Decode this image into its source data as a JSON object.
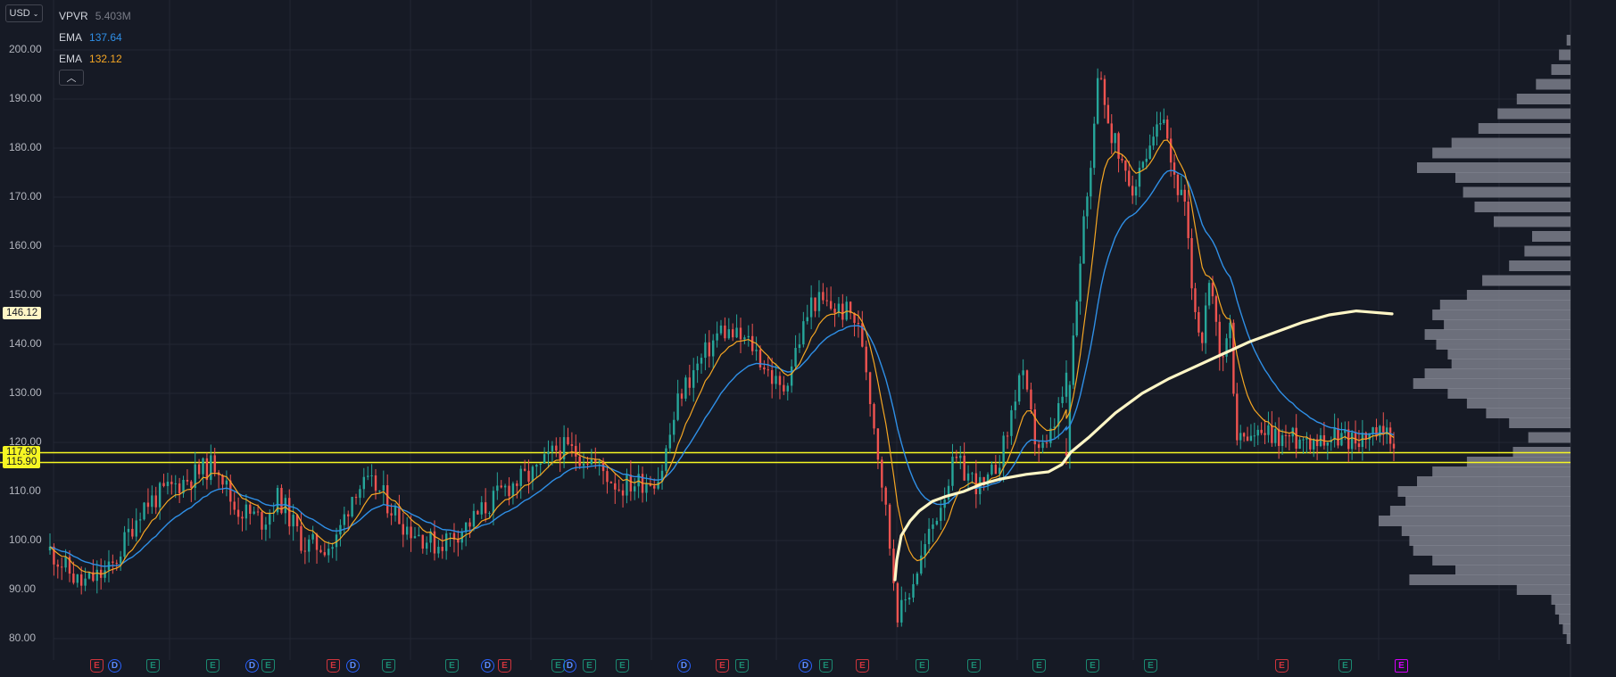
{
  "header": {
    "currency": "USD",
    "collapse_icon": "chevron-up-icon",
    "legend": [
      {
        "name": "VPVR",
        "value": "5.403M",
        "color": "#787b86"
      },
      {
        "name": "EMA",
        "value": "137.64",
        "color": "#2f8fe6"
      },
      {
        "name": "EMA",
        "value": "132.12",
        "color": "#f5a623"
      }
    ]
  },
  "axis": {
    "ticks": [
      "200.00",
      "190.00",
      "180.00",
      "170.00",
      "160.00",
      "150.00",
      "140.00",
      "130.00",
      "120.00",
      "110.00",
      "100.00",
      "90.00",
      "80.00"
    ]
  },
  "price_tags": [
    {
      "label": "146.12",
      "value": 146.12,
      "bg": "#fff6c6"
    },
    {
      "label": "117.90",
      "value": 117.9,
      "bg": "#f6f623"
    },
    {
      "label": "115.90",
      "value": 115.9,
      "bg": "#f6f623"
    }
  ],
  "chart_data": {
    "type": "line",
    "ylim": [
      78,
      203
    ],
    "grid": true,
    "horizontal_lines": [
      117.9,
      115.9
    ],
    "colors": {
      "up": "#26a69a",
      "down": "#ef5350",
      "ema_fast": "#f5a623",
      "ema_slow": "#2f8fe6",
      "vwap": "#fff6c6",
      "hline": "#f6f623",
      "vpvr": "#7b7f8b"
    },
    "price_path": [
      [
        0,
        98
      ],
      [
        0.03,
        91
      ],
      [
        0.06,
        94
      ],
      [
        0.09,
        107
      ],
      [
        0.13,
        112
      ],
      [
        0.165,
        116
      ],
      [
        0.18,
        107
      ],
      [
        0.21,
        104
      ],
      [
        0.225,
        109
      ],
      [
        0.25,
        99
      ],
      [
        0.28,
        99
      ],
      [
        0.3,
        111
      ],
      [
        0.32,
        111
      ],
      [
        0.35,
        103
      ],
      [
        0.38,
        99
      ],
      [
        0.41,
        103
      ],
      [
        0.45,
        111
      ],
      [
        0.48,
        114
      ],
      [
        0.5,
        119
      ],
      [
        0.53,
        117
      ],
      [
        0.56,
        111
      ],
      [
        0.6,
        113
      ],
      [
        0.62,
        130
      ],
      [
        0.66,
        143
      ],
      [
        0.69,
        140
      ],
      [
        0.72,
        130
      ],
      [
        0.75,
        149
      ],
      [
        0.79,
        146
      ],
      [
        0.8,
        140
      ],
      [
        0.82,
        110
      ],
      [
        0.835,
        84
      ],
      [
        0.86,
        98
      ],
      [
        0.89,
        116
      ],
      [
        0.92,
        110
      ],
      [
        0.94,
        120
      ],
      [
        0.955,
        135
      ],
      [
        0.97,
        120
      ],
      [
        0.98,
        118
      ],
      [
        1.0,
        132
      ]
    ],
    "price_path_2": [
      [
        0,
        118
      ],
      [
        0.03,
        150
      ],
      [
        0.06,
        168
      ],
      [
        0.1,
        196
      ],
      [
        0.13,
        185
      ],
      [
        0.17,
        176
      ],
      [
        0.21,
        172
      ],
      [
        0.25,
        177
      ],
      [
        0.29,
        186
      ],
      [
        0.32,
        176
      ],
      [
        0.36,
        168
      ],
      [
        0.38,
        154
      ],
      [
        0.41,
        140
      ],
      [
        0.44,
        152
      ],
      [
        0.47,
        136
      ],
      [
        0.5,
        143
      ],
      [
        0.52,
        121
      ]
    ],
    "vwap_points": [
      [
        1003,
        92
      ],
      [
        1005,
        96
      ],
      [
        1010,
        101
      ],
      [
        1020,
        104
      ],
      [
        1030,
        106
      ],
      [
        1045,
        108
      ],
      [
        1060,
        109
      ],
      [
        1080,
        110
      ],
      [
        1100,
        111.5
      ],
      [
        1120,
        112.5
      ],
      [
        1150,
        113.5
      ],
      [
        1175,
        114
      ],
      [
        1190,
        115.5
      ],
      [
        1200,
        118
      ],
      [
        1220,
        121
      ],
      [
        1250,
        126
      ],
      [
        1280,
        130
      ],
      [
        1310,
        133
      ],
      [
        1340,
        135.5
      ],
      [
        1370,
        138
      ],
      [
        1400,
        140.5
      ],
      [
        1430,
        142.5
      ],
      [
        1460,
        144.5
      ],
      [
        1490,
        146
      ],
      [
        1520,
        146.8
      ],
      [
        1560,
        146.2
      ]
    ],
    "volume_profile": [
      [
        202,
        0.01
      ],
      [
        199,
        0.03
      ],
      [
        196,
        0.05
      ],
      [
        193,
        0.09
      ],
      [
        190,
        0.14
      ],
      [
        187,
        0.19
      ],
      [
        184,
        0.24
      ],
      [
        181,
        0.31
      ],
      [
        179,
        0.36
      ],
      [
        176,
        0.4
      ],
      [
        174,
        0.3
      ],
      [
        171,
        0.28
      ],
      [
        168,
        0.25
      ],
      [
        165,
        0.2
      ],
      [
        162,
        0.1
      ],
      [
        159,
        0.12
      ],
      [
        156,
        0.16
      ],
      [
        153,
        0.23
      ],
      [
        150,
        0.27
      ],
      [
        148,
        0.34
      ],
      [
        146,
        0.36
      ],
      [
        144,
        0.33
      ],
      [
        142,
        0.38
      ],
      [
        140,
        0.35
      ],
      [
        138,
        0.32
      ],
      [
        136,
        0.31
      ],
      [
        134,
        0.38
      ],
      [
        132,
        0.41
      ],
      [
        130,
        0.32
      ],
      [
        128,
        0.27
      ],
      [
        126,
        0.22
      ],
      [
        124,
        0.16
      ],
      [
        121,
        0.11
      ],
      [
        118,
        0.15
      ],
      [
        116,
        0.27
      ],
      [
        114,
        0.36
      ],
      [
        112,
        0.4
      ],
      [
        110,
        0.45
      ],
      [
        108,
        0.43
      ],
      [
        106,
        0.47
      ],
      [
        104,
        0.5
      ],
      [
        102,
        0.44
      ],
      [
        100,
        0.42
      ],
      [
        98,
        0.41
      ],
      [
        96,
        0.36
      ],
      [
        94,
        0.3
      ],
      [
        92,
        0.42
      ],
      [
        90,
        0.14
      ],
      [
        88,
        0.05
      ],
      [
        86,
        0.04
      ],
      [
        84,
        0.03
      ],
      [
        82,
        0.02
      ],
      [
        80,
        0.01
      ]
    ],
    "events": [
      {
        "type": "S",
        "label": "E"
      },
      {
        "type": "D",
        "label": "D"
      },
      {
        "type": "E",
        "label": "E"
      },
      {
        "type": "E",
        "label": "E"
      },
      {
        "type": "D",
        "label": "D"
      },
      {
        "type": "E",
        "label": "E"
      },
      {
        "type": "S",
        "label": "E"
      },
      {
        "type": "D",
        "label": "D"
      },
      {
        "type": "E",
        "label": "E"
      },
      {
        "type": "E",
        "label": "E"
      },
      {
        "type": "D",
        "label": "D"
      },
      {
        "type": "S",
        "label": "E"
      },
      {
        "type": "E",
        "label": "E"
      },
      {
        "type": "D",
        "label": "D"
      },
      {
        "type": "E",
        "label": "E"
      },
      {
        "type": "E",
        "label": "E"
      },
      {
        "type": "D",
        "label": "D"
      },
      {
        "type": "S",
        "label": "E"
      },
      {
        "type": "E",
        "label": "E"
      },
      {
        "type": "D",
        "label": "D"
      },
      {
        "type": "E",
        "label": "E"
      },
      {
        "type": "S",
        "label": "E"
      },
      {
        "type": "E",
        "label": "E"
      },
      {
        "type": "E",
        "label": "E"
      },
      {
        "type": "E",
        "label": "E"
      },
      {
        "type": "E",
        "label": "E"
      },
      {
        "type": "E",
        "label": "E"
      },
      {
        "type": "S",
        "label": "E"
      },
      {
        "type": "E",
        "label": "E"
      },
      {
        "type": "P",
        "label": "E"
      }
    ]
  }
}
